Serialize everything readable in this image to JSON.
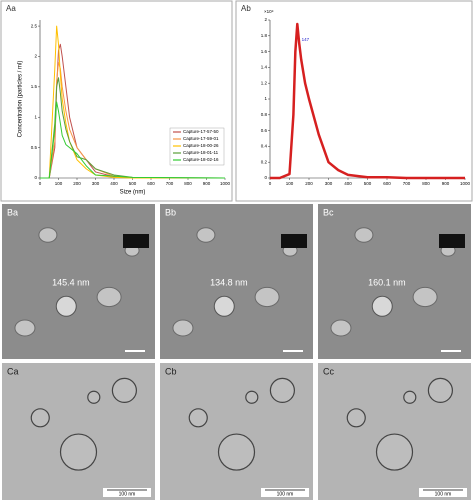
{
  "chart_data": [
    {
      "type": "line",
      "panel_label": "Aa",
      "x_label": "Size (nm)",
      "y_label": "Concentration (particles / ml)",
      "x": [
        0,
        50,
        80,
        90,
        100,
        110,
        120,
        140,
        160,
        200,
        250,
        300,
        400,
        500,
        1000
      ],
      "series": [
        {
          "name": "Capture-17-57-50",
          "color": "#c0504d",
          "values": [
            0,
            0,
            0.5,
            1.5,
            2.1,
            2.2,
            2.0,
            1.5,
            1.0,
            0.5,
            0.3,
            0.1,
            0.02,
            0,
            0
          ]
        },
        {
          "name": "Capture-17-59-01",
          "color": "#f79646",
          "values": [
            0,
            0,
            0.6,
            1.6,
            1.9,
            1.8,
            1.5,
            1.1,
            0.8,
            0.5,
            0.3,
            0.15,
            0.03,
            0,
            0
          ]
        },
        {
          "name": "Capture-18-00-26",
          "color": "#ffc000",
          "values": [
            0,
            0,
            1.8,
            2.5,
            2.2,
            1.7,
            1.3,
            0.9,
            0.6,
            0.3,
            0.15,
            0.05,
            0.01,
            0,
            0
          ]
        },
        {
          "name": "Capture-18-01-11",
          "color": "#5a9e3a",
          "values": [
            0,
            0,
            0.9,
            1.5,
            1.65,
            1.4,
            1.1,
            0.8,
            0.6,
            0.35,
            0.3,
            0.15,
            0.05,
            0.01,
            0
          ]
        },
        {
          "name": "Capture-18-02-16",
          "color": "#33cc33",
          "values": [
            0,
            0,
            0.8,
            1.25,
            1.1,
            0.9,
            0.7,
            0.55,
            0.5,
            0.4,
            0.2,
            0.05,
            0.03,
            0.01,
            0
          ]
        }
      ],
      "xlim": [
        0,
        1000
      ],
      "xticks": [
        0,
        100,
        200,
        300,
        400,
        500,
        600,
        700,
        800,
        900,
        1000
      ],
      "ylim": [
        0,
        2.6
      ],
      "yticks": [
        0,
        0.5,
        1,
        1.5,
        2,
        2.5
      ],
      "legend": "lower-right"
    },
    {
      "type": "line",
      "panel_label": "Ab",
      "y_exponent": "×10⁹",
      "x": [
        0,
        50,
        100,
        120,
        130,
        140,
        150,
        160,
        180,
        200,
        250,
        300,
        350,
        400,
        500,
        600,
        700,
        800,
        1000
      ],
      "series": [
        {
          "color": "#d62020",
          "values": [
            0,
            0,
            0.05,
            0.8,
            1.6,
            1.95,
            1.7,
            1.5,
            1.2,
            1.0,
            0.55,
            0.2,
            0.1,
            0.04,
            0.01,
            0.01,
            0,
            0,
            0
          ]
        }
      ],
      "xlim": [
        0,
        1000
      ],
      "xticks": [
        0,
        100,
        200,
        300,
        400,
        500,
        600,
        700,
        800,
        900,
        1000
      ],
      "ylim": [
        0,
        2
      ],
      "yticks": [
        0,
        0.2,
        0.4,
        0.6,
        0.8,
        1,
        1.2,
        1.4,
        1.6,
        1.8,
        2
      ],
      "annotations": [
        {
          "label": "147",
          "x": 147,
          "y": 1.75
        }
      ]
    }
  ],
  "sem_panels": [
    {
      "label": "Ba",
      "size": "145.4 nm"
    },
    {
      "label": "Bb",
      "size": "134.8 nm"
    },
    {
      "label": "Bc",
      "size": "160.1 nm"
    }
  ],
  "cryo_panels": [
    {
      "label": "Ca",
      "scale": "100 nm"
    },
    {
      "label": "Cb",
      "scale": "100 nm"
    },
    {
      "label": "Cc",
      "scale": "100 nm"
    }
  ]
}
